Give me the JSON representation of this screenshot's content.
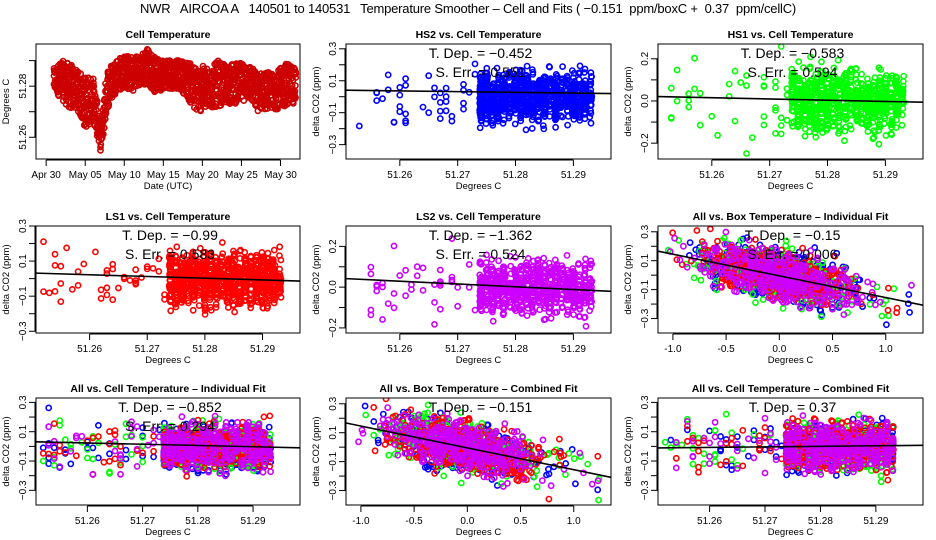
{
  "figure": {
    "title": "NWR   AIRCOA A   140501 to 140531   Temperature Smoother – Cell and Fits ( −0.151  ppm/boxC +  0.37  ppm/cellC)"
  },
  "colors": {
    "hs2": "#0000ff",
    "hs1": "#00ff00",
    "ls1": "#ff0000",
    "ls2": "#cc00ff",
    "cell": "#cc0000",
    "fit_line": "#000000"
  },
  "chart_data": [
    {
      "id": "cell-temperature",
      "type": "scatter",
      "title": "Cell Temperature",
      "xlabel": "Date (UTC)",
      "ylabel": "Degrees C",
      "x_tick_labels": [
        "Apr 30",
        "May 05",
        "May 10",
        "May 15",
        "May 20",
        "May 25",
        "May 30"
      ],
      "x_ticks_days": [
        0,
        5,
        10,
        15,
        20,
        25,
        30
      ],
      "xlim_days": [
        -1.3,
        32.5
      ],
      "y_tick_labels": [
        "51.26",
        "51.28"
      ],
      "y_ticks": [
        51.26,
        51.28
      ],
      "y_minor_ticks": [
        51.26,
        51.27,
        51.28,
        51.29
      ],
      "ylim": [
        51.2515,
        51.2965
      ],
      "series": [
        {
          "name": "Cell",
          "color_key": "cell",
          "profile": [
            [
              1,
              51.278,
              51.287
            ],
            [
              2,
              51.275,
              51.29
            ],
            [
              3,
              51.271,
              51.289
            ],
            [
              4,
              51.271,
              51.286
            ],
            [
              5,
              51.263,
              51.284
            ],
            [
              6,
              51.267,
              51.284
            ],
            [
              7,
              51.254,
              51.265
            ],
            [
              7.8,
              51.271,
              51.287
            ],
            [
              9,
              51.278,
              51.291
            ],
            [
              10,
              51.279,
              51.292
            ],
            [
              11,
              51.278,
              51.292
            ],
            [
              12,
              51.28,
              51.292
            ],
            [
              13,
              51.281,
              51.295
            ],
            [
              14,
              51.277,
              51.291
            ],
            [
              15,
              51.279,
              51.291
            ],
            [
              16,
              51.279,
              51.291
            ],
            [
              17,
              51.279,
              51.29
            ],
            [
              18,
              51.276,
              51.29
            ],
            [
              19,
              51.27,
              51.288
            ],
            [
              20,
              51.27,
              51.288
            ],
            [
              21,
              51.271,
              51.287
            ],
            [
              22,
              51.272,
              51.29
            ],
            [
              23,
              51.273,
              51.288
            ],
            [
              24,
              51.273,
              51.289
            ],
            [
              25,
              51.274,
              51.289
            ],
            [
              26,
              51.275,
              51.289
            ],
            [
              27,
              51.27,
              51.285
            ],
            [
              28,
              51.271,
              51.286
            ],
            [
              29,
              51.271,
              51.285
            ],
            [
              30,
              51.271,
              51.287
            ],
            [
              31,
              51.273,
              51.29
            ],
            [
              32,
              51.273,
              51.286
            ]
          ]
        }
      ]
    },
    {
      "id": "hs2-vs-cell",
      "type": "scatter",
      "title": "HS2 vs. Cell Temperature",
      "xlabel": "Degrees C",
      "ylabel": "delta CO2 (ppm)",
      "x_tick_labels": [
        "51.26",
        "51.27",
        "51.28",
        "51.29"
      ],
      "x_ticks": [
        51.26,
        51.27,
        51.28,
        51.29
      ],
      "xlim": [
        51.2507,
        51.2965
      ],
      "y_tick_labels": [
        "-0.3",
        "-0.1",
        "0.1",
        "0.3"
      ],
      "y_ticks": [
        -0.3,
        -0.1,
        0.1,
        0.3
      ],
      "y_minor_ticks": [
        -0.3,
        -0.2,
        -0.1,
        0.0,
        0.1,
        0.2,
        0.3
      ],
      "ylim": [
        -0.39,
        0.33
      ],
      "annotations": [
        "T. Dep. =  −0.452",
        "S. Err. =  0.551"
      ],
      "fit": {
        "slope": -0.452,
        "intercept_at_x0": 0.04,
        "x0": 51.252
      },
      "series": [
        {
          "name": "HS2",
          "color_key": "hs2",
          "spread": 0.09,
          "sparse": 40,
          "dense": 900
        }
      ]
    },
    {
      "id": "hs1-vs-cell",
      "type": "scatter",
      "title": "HS1 vs. Cell Temperature",
      "xlabel": "Degrees C",
      "ylabel": "delta CO2 (ppm)",
      "x_tick_labels": [
        "51.26",
        "51.27",
        "51.28",
        "51.29"
      ],
      "x_ticks": [
        51.26,
        51.27,
        51.28,
        51.29
      ],
      "xlim": [
        51.2507,
        51.2965
      ],
      "y_tick_labels": [
        "-0.2",
        "0.0",
        "0.2"
      ],
      "y_ticks": [
        -0.2,
        0.0,
        0.2
      ],
      "y_minor_ticks": [
        -0.2,
        -0.1,
        0.0,
        0.1,
        0.2
      ],
      "ylim": [
        -0.275,
        0.27
      ],
      "annotations": [
        "T. Dep. =  −0.583",
        "S. Err. =  0.594"
      ],
      "fit": {
        "slope": -0.583,
        "intercept_at_x0": 0.02,
        "x0": 51.252
      },
      "series": [
        {
          "name": "HS1",
          "color_key": "hs1",
          "spread": 0.09,
          "sparse": 40,
          "dense": 700
        }
      ]
    },
    {
      "id": "ls1-vs-cell",
      "type": "scatter",
      "title": "LS1 vs. Cell Temperature",
      "xlabel": "Degrees C",
      "ylabel": "delta CO2 (ppm)",
      "x_tick_labels": [
        "51.26",
        "51.27",
        "51.28",
        "51.29"
      ],
      "x_ticks": [
        51.26,
        51.27,
        51.28,
        51.29
      ],
      "xlim": [
        51.2507,
        51.2965
      ],
      "y_tick_labels": [
        "-0.3",
        "-0.1",
        "0.1",
        "0.3"
      ],
      "y_ticks": [
        -0.3,
        -0.1,
        0.1,
        0.3
      ],
      "y_minor_ticks": [
        -0.3,
        -0.2,
        -0.1,
        0.0,
        0.1,
        0.2,
        0.3
      ],
      "ylim": [
        -0.31,
        0.3
      ],
      "annotations": [
        "T. Dep. =  −0.99",
        "S. Err. =  0.583"
      ],
      "fit": {
        "slope": -0.99,
        "intercept_at_x0": 0.03,
        "x0": 51.252
      },
      "series": [
        {
          "name": "LS1",
          "color_key": "ls1",
          "spread": 0.09,
          "sparse": 40,
          "dense": 900
        }
      ]
    },
    {
      "id": "ls2-vs-cell",
      "type": "scatter",
      "title": "LS2 vs. Cell Temperature",
      "xlabel": "Degrees C",
      "ylabel": "delta CO2 (ppm)",
      "x_tick_labels": [
        "51.26",
        "51.27",
        "51.28",
        "51.29"
      ],
      "x_ticks": [
        51.26,
        51.27,
        51.28,
        51.29
      ],
      "xlim": [
        51.2507,
        51.2965
      ],
      "y_tick_labels": [
        "-0.2",
        "0.0",
        "0.2"
      ],
      "y_ticks": [
        -0.2,
        0.0,
        0.2
      ],
      "y_minor_ticks": [
        -0.2,
        -0.1,
        0.0,
        0.1,
        0.2
      ],
      "ylim": [
        -0.225,
        0.3
      ],
      "annotations": [
        "T. Dep. =  −1.362",
        "S. Err. =  0.524"
      ],
      "fit": {
        "slope": -1.362,
        "intercept_at_x0": 0.04,
        "x0": 51.252
      },
      "series": [
        {
          "name": "LS2",
          "color_key": "ls2",
          "spread": 0.075,
          "sparse": 40,
          "dense": 700
        }
      ]
    },
    {
      "id": "all-vs-box-individual",
      "type": "scatter",
      "title": "All vs. Box Temperature – Individual Fit",
      "xlabel": "Degrees C",
      "ylabel": "delta CO2 (ppm)",
      "x_tick_labels": [
        "-1.0",
        "-0.5",
        "0.0",
        "0.5",
        "1.0"
      ],
      "x_ticks": [
        -1.0,
        -0.5,
        0.0,
        0.5,
        1.0
      ],
      "xlim": [
        -1.14,
        1.35
      ],
      "y_tick_labels": [
        "-0.3",
        "-0.1",
        "0.1",
        "0.3"
      ],
      "y_ticks": [
        -0.3,
        -0.1,
        0.1,
        0.3
      ],
      "y_minor_ticks": [
        -0.3,
        -0.2,
        -0.1,
        0.0,
        0.1,
        0.2,
        0.3
      ],
      "ylim": [
        -0.4,
        0.34
      ],
      "annotations": [
        "T. Dep. =  −0.15",
        "S. Err. =  0.006"
      ],
      "fit": {
        "slope": -0.15,
        "intercept_at_x0": -0.005,
        "x0": 0.0
      },
      "series": [
        {
          "name": "HS2",
          "color_key": "hs2"
        },
        {
          "name": "HS1",
          "color_key": "hs1"
        },
        {
          "name": "LS1",
          "color_key": "ls1"
        },
        {
          "name": "LS2",
          "color_key": "ls2"
        }
      ]
    },
    {
      "id": "all-vs-cell-individual",
      "type": "scatter",
      "title": "All vs. Cell Temperature – Individual Fit",
      "xlabel": "Degrees C",
      "ylabel": "delta CO2 (ppm)",
      "x_tick_labels": [
        "51.26",
        "51.27",
        "51.28",
        "51.29"
      ],
      "x_ticks": [
        51.26,
        51.27,
        51.28,
        51.29
      ],
      "xlim": [
        51.2507,
        51.2985
      ],
      "y_tick_labels": [
        "-0.3",
        "-0.1",
        "0.1",
        "0.3"
      ],
      "y_ticks": [
        -0.3,
        -0.1,
        0.1,
        0.3
      ],
      "y_minor_ticks": [
        -0.3,
        -0.2,
        -0.1,
        0.0,
        0.1,
        0.2,
        0.3
      ],
      "ylim": [
        -0.4,
        0.33
      ],
      "annotations": [
        "T. Dep. =  −0.852",
        "S. Err. =  0.294"
      ],
      "fit": {
        "slope": -0.852,
        "intercept_at_x0": 0.03,
        "x0": 51.252
      },
      "series": [
        {
          "name": "HS2",
          "color_key": "hs2"
        },
        {
          "name": "HS1",
          "color_key": "hs1"
        },
        {
          "name": "LS1",
          "color_key": "ls1"
        },
        {
          "name": "LS2",
          "color_key": "ls2"
        }
      ]
    },
    {
      "id": "all-vs-box-combined",
      "type": "scatter",
      "title": "All vs. Box Temperature – Combined Fit",
      "xlabel": "Degrees C",
      "ylabel": "delta CO2 (ppm)",
      "x_tick_labels": [
        "-1.0",
        "-0.5",
        "0.0",
        "0.5",
        "1.0"
      ],
      "x_ticks": [
        -1.0,
        -0.5,
        0.0,
        0.5,
        1.0
      ],
      "xlim": [
        -1.14,
        1.35
      ],
      "y_tick_labels": [
        "-0.3",
        "-0.1",
        "0.1",
        "0.3"
      ],
      "y_ticks": [
        -0.3,
        -0.1,
        0.1,
        0.3
      ],
      "y_minor_ticks": [
        -0.3,
        -0.2,
        -0.1,
        0.0,
        0.1,
        0.2,
        0.3
      ],
      "ylim": [
        -0.4,
        0.34
      ],
      "annotations": [
        "T. Dep. =  −0.151"
      ],
      "fit": {
        "slope": -0.151,
        "intercept_at_x0": -0.005,
        "x0": 0.0
      },
      "series": [
        {
          "name": "HS2",
          "color_key": "hs2"
        },
        {
          "name": "HS1",
          "color_key": "hs1"
        },
        {
          "name": "LS1",
          "color_key": "ls1"
        },
        {
          "name": "LS2",
          "color_key": "ls2"
        }
      ]
    },
    {
      "id": "all-vs-cell-combined",
      "type": "scatter",
      "title": "All vs. Cell Temperature – Combined Fit",
      "xlabel": "Degrees C",
      "ylabel": "delta CO2 (ppm)",
      "x_tick_labels": [
        "51.26",
        "51.27",
        "51.28",
        "51.29"
      ],
      "x_ticks": [
        51.26,
        51.27,
        51.28,
        51.29
      ],
      "xlim": [
        51.2507,
        51.2985
      ],
      "y_tick_labels": [
        "-0.3",
        "-0.1",
        "0.1",
        "0.3"
      ],
      "y_ticks": [
        -0.3,
        -0.1,
        0.1,
        0.3
      ],
      "y_minor_ticks": [
        -0.3,
        -0.2,
        -0.1,
        0.0,
        0.1,
        0.2,
        0.3
      ],
      "ylim": [
        -0.4,
        0.33
      ],
      "annotations": [
        "T. Dep. =  0.37"
      ],
      "fit": {
        "slope": 0.37,
        "intercept_at_x0": -0.01,
        "x0": 51.252
      },
      "series": [
        {
          "name": "HS2",
          "color_key": "hs2"
        },
        {
          "name": "HS1",
          "color_key": "hs1"
        },
        {
          "name": "LS1",
          "color_key": "ls1"
        },
        {
          "name": "LS2",
          "color_key": "ls2"
        }
      ]
    }
  ]
}
